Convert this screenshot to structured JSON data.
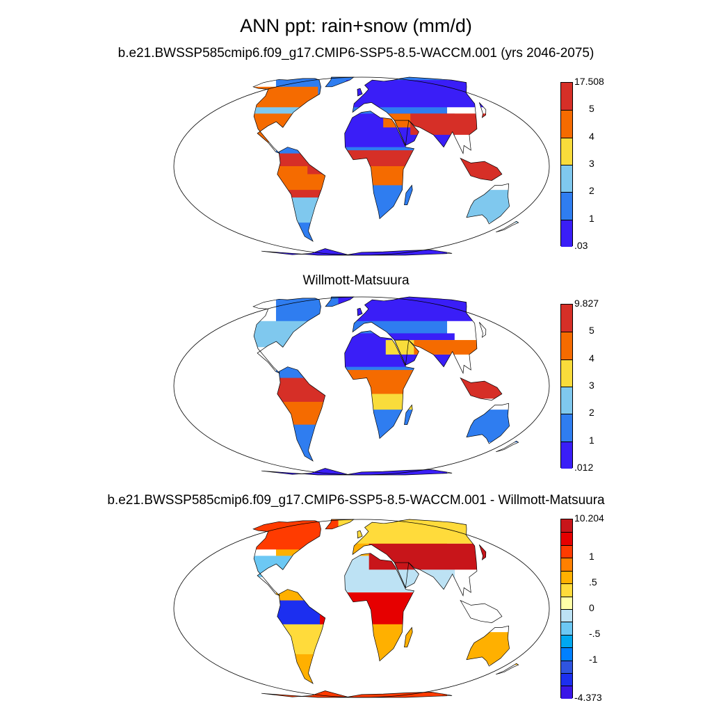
{
  "title": "ANN ppt: rain+snow (mm/d)",
  "panels": [
    {
      "title": "b.e21.BWSSP585cmip6.f09_g17.CMIP6-SSP5-8.5-WACCM.001 (yrs 2046-2075)",
      "colorbar": {
        "colors": [
          "#d62f27",
          "#f56b00",
          "#f9dc3b",
          "#7fc8ee",
          "#2f7df0",
          "#3a1ef7"
        ],
        "labels": [
          "17.508",
          "5",
          "4",
          "3",
          "2",
          "1",
          ".03"
        ]
      }
    },
    {
      "title": "Willmott-Matsuura",
      "colorbar": {
        "colors": [
          "#d62f27",
          "#f56b00",
          "#f9dc3b",
          "#7fc8ee",
          "#2f7df0",
          "#3a1ef7"
        ],
        "labels": [
          "9.827",
          "5",
          "4",
          "3",
          "2",
          "1",
          ".012"
        ]
      }
    },
    {
      "title": "b.e21.BWSSP585cmip6.f09_g17.CMIP6-SSP5-8.5-WACCM.001 - Willmott-Matsuura",
      "colorbar": {
        "colors": [
          "#c8151a",
          "#e60000",
          "#ff3b00",
          "#ff8000",
          "#ffb000",
          "#ffdb3b",
          "#ffffa8",
          "#bde2f4",
          "#6cc8f4",
          "#00a8f0",
          "#0080ff",
          "#2f54e0",
          "#1c2ff0",
          "#3a16e8"
        ],
        "labels": [
          "10.204",
          "1",
          ".5",
          "0",
          "-.5",
          "-1",
          "-4.373"
        ]
      }
    }
  ]
}
